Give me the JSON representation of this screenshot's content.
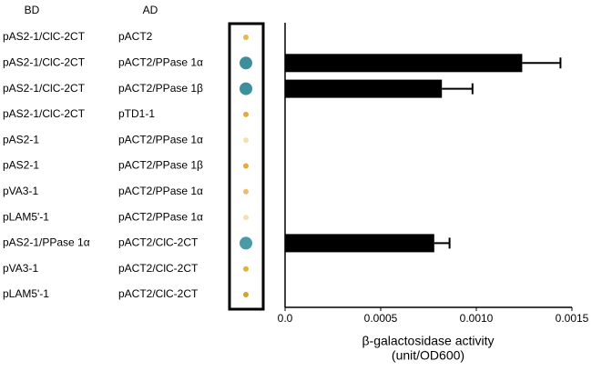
{
  "chart_data": {
    "type": "barh",
    "bd_header": "BD",
    "ad_header": "AD",
    "bd": [
      "pAS2-1/ClC-2CT",
      "pAS2-1/ClC-2CT",
      "pAS2-1/ClC-2CT",
      "pAS2-1/ClC-2CT",
      "pAS2-1",
      "pAS2-1",
      "pVA3-1",
      "pLAM5'-1",
      "pAS2-1/PPase 1α",
      "pVA3-1",
      "pLAM5'-1"
    ],
    "ad": [
      "pACT2",
      "pACT2/PPase 1α",
      "pACT2/PPase 1β",
      "pTD1-1",
      "pACT2/PPase 1α",
      "pACT2/PPase 1β",
      "pACT2/PPase 1α",
      "pACT2/PPase 1α",
      "pACT2/ClC-2CT",
      "pACT2/ClC-2CT",
      "pACT2/ClC-2CT"
    ],
    "spot_colors": [
      "#e8b84a",
      "#3d8f9c",
      "#3d8f9c",
      "#e8a83a",
      "#f3dfb0",
      "#e8a83a",
      "#eebc6a",
      "#f3dfb0",
      "#4a9aa8",
      "#e8b030",
      "#d8a030"
    ],
    "values": [
      0,
      0.00124,
      0.00082,
      0,
      0,
      0,
      0,
      0,
      0.00078,
      0,
      0
    ],
    "errors": [
      0,
      0.0002,
      0.00016,
      0,
      0,
      0,
      0,
      0,
      8e-05,
      0,
      0
    ],
    "color": "#000000",
    "xlim": [
      0,
      0.0015
    ],
    "xticks": [
      {
        "value": 0,
        "label": "0.0"
      },
      {
        "value": 0.0005,
        "label": "0.0005"
      },
      {
        "value": 0.001,
        "label": "0.0010"
      },
      {
        "value": 0.0015,
        "label": "0.0015"
      }
    ],
    "xlabel": [
      "β-galactosidase activity",
      "(unit/OD600)"
    ]
  }
}
